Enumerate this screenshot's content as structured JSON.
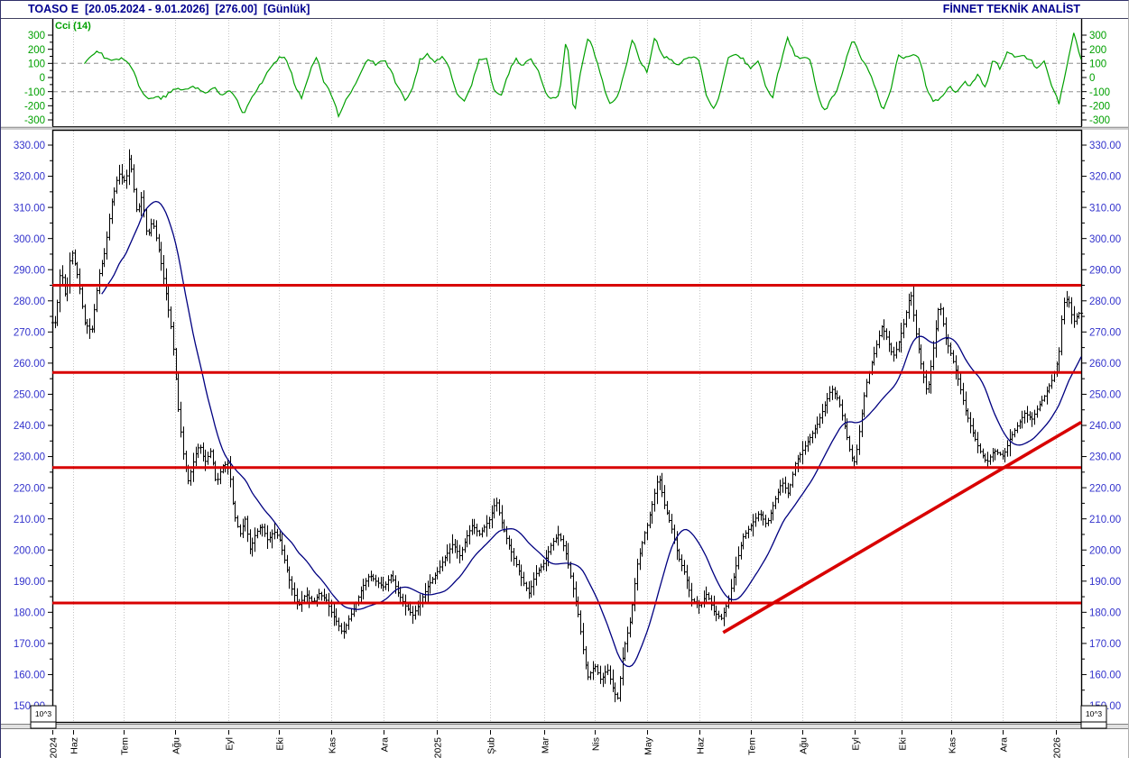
{
  "header": {
    "title": "TOASO E  [20.05.2024 - 9.01.2026]  [276.00]  [Günlük]",
    "brand": "FİNNET TEKNİK ANALİST",
    "title_color": "#000090"
  },
  "colors": {
    "cci_green": "#00A000",
    "price_axis_blue": "#3333CC",
    "bar_black": "#000000",
    "ma_blue": "#000080",
    "level_red": "#D80000",
    "grid_dot": "#C4C4C4",
    "grid_dash": "#ABABAB",
    "splitter_gray": "#808080"
  },
  "scale_box_label": "10^3",
  "chart_data": [
    {
      "id": "cci",
      "type": "line",
      "name": "Cci (14)",
      "color": "#00A000",
      "axis_color": "#00A000",
      "ylim": [
        -350,
        350
      ],
      "yticks": [
        300,
        200,
        100,
        0,
        -100,
        -200,
        -300
      ],
      "minor_step": 50,
      "dashed_levels": [
        100,
        -100
      ],
      "grid": true,
      "legend_position": "top-left",
      "values": [
        -95,
        -130,
        -110,
        -50,
        60,
        150,
        190,
        150,
        130,
        140,
        120,
        60,
        -90,
        -155,
        -130,
        -145,
        -110,
        -70,
        -95,
        -60,
        -85,
        -110,
        -70,
        -130,
        -90,
        -140,
        -255,
        -150,
        -70,
        10,
        90,
        145,
        120,
        -50,
        -145,
        40,
        160,
        -40,
        -120,
        -285,
        -150,
        -60,
        30,
        140,
        90,
        130,
        60,
        -70,
        -160,
        -90,
        130,
        160,
        110,
        140,
        70,
        -110,
        -180,
        -60,
        120,
        150,
        -80,
        -140,
        20,
        130,
        90,
        140,
        60,
        -90,
        -160,
        -110,
        300,
        -270,
        80,
        290,
        130,
        -60,
        -200,
        -130,
        60,
        280,
        120,
        40,
        290,
        150,
        130,
        90,
        130,
        150,
        130,
        -140,
        -230,
        -90,
        140,
        170,
        130,
        60,
        130,
        -60,
        -140,
        80,
        290,
        160,
        130,
        150,
        -90,
        -240,
        -160,
        -60,
        130,
        280,
        130,
        60,
        -80,
        -250,
        -110,
        150,
        130,
        160,
        130,
        -80,
        -180,
        -130,
        -60,
        -100,
        -30,
        -60,
        40,
        -90,
        130,
        60,
        190,
        140,
        160,
        130,
        60,
        130,
        -60,
        -180,
        60,
        320,
        120
      ]
    },
    {
      "id": "price",
      "type": "ohlc_bars",
      "title": "TOASO E",
      "period": "Günlük",
      "date_range": [
        "20.05.2024",
        "9.01.2026"
      ],
      "last_price": 276.0,
      "bar_color": "#000000",
      "axis_color": "#3333CC",
      "ylim": [
        145,
        335
      ],
      "yticks": [
        330,
        320,
        310,
        300,
        290,
        280,
        270,
        260,
        250,
        240,
        230,
        220,
        210,
        200,
        190,
        180,
        170,
        160,
        150
      ],
      "minor_step": 5,
      "bar_count": 418,
      "close_path": [
        [
          0.003,
          273
        ],
        [
          0.008,
          291
        ],
        [
          0.013,
          280
        ],
        [
          0.018,
          297
        ],
        [
          0.025,
          287
        ],
        [
          0.031,
          273
        ],
        [
          0.038,
          270
        ],
        [
          0.045,
          288
        ],
        [
          0.051,
          296
        ],
        [
          0.057,
          311
        ],
        [
          0.064,
          321
        ],
        [
          0.071,
          318
        ],
        [
          0.075,
          327
        ],
        [
          0.082,
          308
        ],
        [
          0.087,
          314
        ],
        [
          0.092,
          300
        ],
        [
          0.097,
          306
        ],
        [
          0.104,
          295
        ],
        [
          0.11,
          283
        ],
        [
          0.115,
          272
        ],
        [
          0.118,
          263
        ],
        [
          0.122,
          246
        ],
        [
          0.127,
          231
        ],
        [
          0.132,
          222
        ],
        [
          0.138,
          230
        ],
        [
          0.143,
          234
        ],
        [
          0.148,
          228
        ],
        [
          0.154,
          232
        ],
        [
          0.159,
          221
        ],
        [
          0.165,
          227
        ],
        [
          0.171,
          228
        ],
        [
          0.176,
          212
        ],
        [
          0.182,
          205
        ],
        [
          0.187,
          210
        ],
        [
          0.192,
          200
        ],
        [
          0.197,
          205
        ],
        [
          0.203,
          208
        ],
        [
          0.209,
          203
        ],
        [
          0.215,
          206
        ],
        [
          0.22,
          204
        ],
        [
          0.226,
          196
        ],
        [
          0.232,
          188
        ],
        [
          0.239,
          182
        ],
        [
          0.246,
          186
        ],
        [
          0.253,
          183
        ],
        [
          0.259,
          186
        ],
        [
          0.266,
          184
        ],
        [
          0.271,
          180
        ],
        [
          0.276,
          177
        ],
        [
          0.282,
          173
        ],
        [
          0.288,
          178
        ],
        [
          0.294,
          182
        ],
        [
          0.301,
          188
        ],
        [
          0.308,
          192
        ],
        [
          0.314,
          190
        ],
        [
          0.322,
          188
        ],
        [
          0.329,
          192
        ],
        [
          0.336,
          186
        ],
        [
          0.343,
          182
        ],
        [
          0.35,
          179
        ],
        [
          0.357,
          183
        ],
        [
          0.364,
          188
        ],
        [
          0.374,
          193
        ],
        [
          0.382,
          198
        ],
        [
          0.389,
          202
        ],
        [
          0.396,
          198
        ],
        [
          0.402,
          204
        ],
        [
          0.408,
          208
        ],
        [
          0.415,
          205
        ],
        [
          0.425,
          210
        ],
        [
          0.431,
          216
        ],
        [
          0.437,
          208
        ],
        [
          0.443,
          202
        ],
        [
          0.45,
          196
        ],
        [
          0.457,
          190
        ],
        [
          0.463,
          186
        ],
        [
          0.469,
          192
        ],
        [
          0.478,
          196
        ],
        [
          0.485,
          202
        ],
        [
          0.492,
          205
        ],
        [
          0.498,
          200
        ],
        [
          0.504,
          191
        ],
        [
          0.511,
          179
        ],
        [
          0.516,
          167
        ],
        [
          0.52,
          159
        ],
        [
          0.527,
          163
        ],
        [
          0.533,
          158
        ],
        [
          0.539,
          162
        ],
        [
          0.545,
          155
        ],
        [
          0.549,
          152
        ],
        [
          0.555,
          168
        ],
        [
          0.562,
          178
        ],
        [
          0.568,
          195
        ],
        [
          0.575,
          205
        ],
        [
          0.578,
          208
        ],
        [
          0.583,
          215
        ],
        [
          0.589,
          224
        ],
        [
          0.595,
          214
        ],
        [
          0.601,
          208
        ],
        [
          0.608,
          198
        ],
        [
          0.615,
          192
        ],
        [
          0.621,
          184
        ],
        [
          0.629,
          182
        ],
        [
          0.636,
          186
        ],
        [
          0.643,
          180
        ],
        [
          0.65,
          178
        ],
        [
          0.657,
          184
        ],
        [
          0.665,
          196
        ],
        [
          0.671,
          204
        ],
        [
          0.679,
          208
        ],
        [
          0.687,
          212
        ],
        [
          0.694,
          208
        ],
        [
          0.701,
          215
        ],
        [
          0.709,
          222
        ],
        [
          0.715,
          218
        ],
        [
          0.722,
          228
        ],
        [
          0.729,
          232
        ],
        [
          0.736,
          236
        ],
        [
          0.743,
          240
        ],
        [
          0.75,
          246
        ],
        [
          0.757,
          252
        ],
        [
          0.764,
          248
        ],
        [
          0.771,
          238
        ],
        [
          0.776,
          230
        ],
        [
          0.78,
          228
        ],
        [
          0.785,
          240
        ],
        [
          0.79,
          252
        ],
        [
          0.796,
          260
        ],
        [
          0.801,
          266
        ],
        [
          0.806,
          272
        ],
        [
          0.811,
          268
        ],
        [
          0.817,
          262
        ],
        [
          0.821,
          265
        ],
        [
          0.827,
          272
        ],
        [
          0.834,
          283
        ],
        [
          0.839,
          270
        ],
        [
          0.845,
          258
        ],
        [
          0.85,
          250
        ],
        [
          0.855,
          262
        ],
        [
          0.862,
          280
        ],
        [
          0.868,
          268
        ],
        [
          0.874,
          262
        ],
        [
          0.88,
          255
        ],
        [
          0.887,
          245
        ],
        [
          0.894,
          238
        ],
        [
          0.901,
          232
        ],
        [
          0.908,
          228
        ],
        [
          0.915,
          232
        ],
        [
          0.924,
          230
        ],
        [
          0.931,
          236
        ],
        [
          0.938,
          240
        ],
        [
          0.945,
          244
        ],
        [
          0.952,
          242
        ],
        [
          0.958,
          246
        ],
        [
          0.965,
          250
        ],
        [
          0.972,
          255
        ],
        [
          0.978,
          262
        ],
        [
          0.982,
          279
        ],
        [
          0.987,
          281
        ],
        [
          0.992,
          273
        ],
        [
          0.997,
          276
        ]
      ],
      "ma": {
        "period": 21,
        "color": "#000080"
      },
      "levels": [
        285,
        257,
        226.5,
        183
      ],
      "level_color": "#D80000",
      "trendline": {
        "from": [
          0.652,
          173.5
        ],
        "to": [
          1.0,
          241
        ],
        "color": "#D80000"
      },
      "x_labels": [
        {
          "t": "2024",
          "f": 0.0
        },
        {
          "t": "Haz",
          "f": 0.02
        },
        {
          "t": "Tem",
          "f": 0.069
        },
        {
          "t": "Ağu",
          "f": 0.119
        },
        {
          "t": "Eyl",
          "f": 0.171
        },
        {
          "t": "Eki",
          "f": 0.22
        },
        {
          "t": "Kas",
          "f": 0.271
        },
        {
          "t": "Ara",
          "f": 0.322
        },
        {
          "t": "2025",
          "f": 0.374
        },
        {
          "t": "Şub",
          "f": 0.425
        },
        {
          "t": "Mar",
          "f": 0.478
        },
        {
          "t": "Nis",
          "f": 0.527
        },
        {
          "t": "May",
          "f": 0.578
        },
        {
          "t": "Haz",
          "f": 0.629
        },
        {
          "t": "Tem",
          "f": 0.679
        },
        {
          "t": "Ağu",
          "f": 0.729
        },
        {
          "t": "Eyl",
          "f": 0.78
        },
        {
          "t": "Eki",
          "f": 0.825
        },
        {
          "t": "Kas",
          "f": 0.874
        },
        {
          "t": "Ara",
          "f": 0.924
        },
        {
          "t": "2026",
          "f": 0.975
        }
      ]
    }
  ]
}
